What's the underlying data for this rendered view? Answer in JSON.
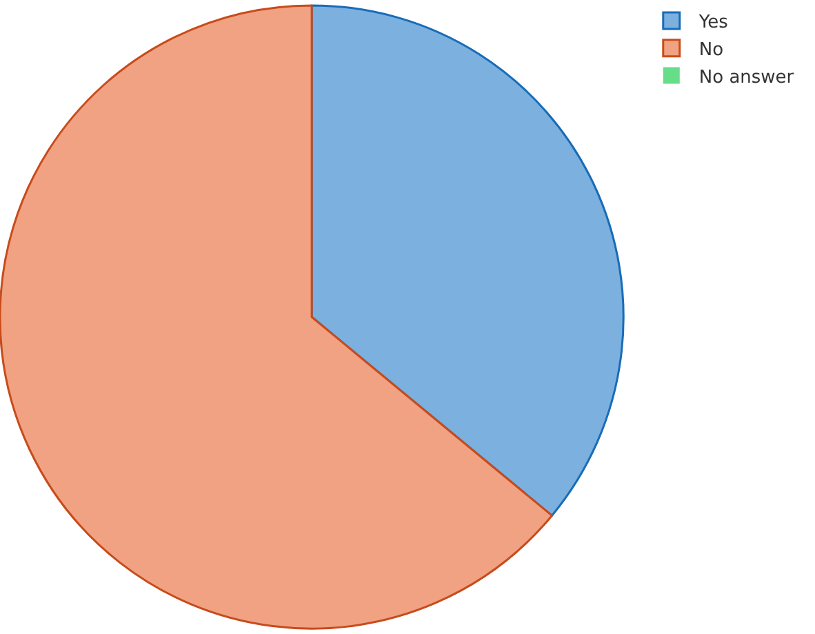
{
  "chart_data": {
    "type": "pie",
    "categories": [
      "Yes",
      "No",
      "No answer"
    ],
    "values": [
      36,
      64,
      0
    ],
    "colors": [
      "#7cb0df",
      "#f0a283",
      "#66dd88"
    ],
    "legend": "top right"
  }
}
